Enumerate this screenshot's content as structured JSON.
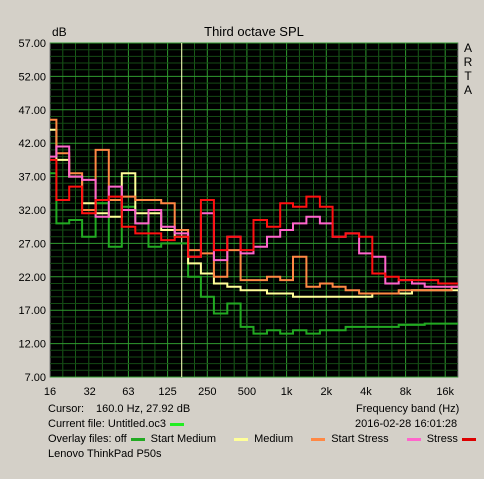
{
  "chart_data": {
    "type": "line",
    "title": "Third octave SPL",
    "ylabel": "dB",
    "xlabel": "Frequency band (Hz)",
    "x_scale": "log",
    "xlim": [
      16,
      20000
    ],
    "ylim": [
      7,
      57
    ],
    "y_ticks": [
      "57.00",
      "52.00",
      "47.00",
      "42.00",
      "37.00",
      "32.00",
      "27.00",
      "22.00",
      "17.00",
      "12.00",
      "7.00"
    ],
    "x_tick_values": [
      16,
      32,
      63,
      125,
      250,
      500,
      1000,
      2000,
      4000,
      8000,
      16000
    ],
    "x_tick_labels": [
      "16",
      "32",
      "63",
      "125",
      "250",
      "500",
      "1k",
      "2k",
      "4k",
      "8k",
      "16k"
    ],
    "x_bands": [
      16,
      20,
      25,
      31.5,
      40,
      50,
      63,
      80,
      100,
      125,
      160,
      200,
      250,
      315,
      400,
      500,
      630,
      800,
      1000,
      1250,
      1600,
      2000,
      2500,
      3150,
      4000,
      5000,
      6300,
      8000,
      10000,
      12500,
      16000,
      20000
    ],
    "cursor_x": 160,
    "grid": true,
    "series": [
      {
        "name": "Start Medium",
        "color": "#22aa22",
        "values": [
          37.5,
          30.0,
          30.5,
          28.0,
          33.0,
          26.5,
          32.5,
          30.0,
          26.5,
          27.0,
          27.0,
          22.0,
          19.0,
          16.5,
          18.0,
          14.5,
          13.5,
          14.0,
          13.5,
          14.0,
          13.5,
          14.0,
          14.0,
          14.5,
          14.5,
          14.5,
          14.5,
          14.8,
          14.8,
          15.0,
          15.0,
          15.0
        ]
      },
      {
        "name": "Medium",
        "color": "#ffff99",
        "values": [
          44.0,
          39.5,
          37.0,
          33.0,
          31.5,
          31.0,
          37.5,
          31.5,
          31.5,
          29.0,
          28.0,
          24.0,
          22.5,
          21.0,
          20.5,
          20.0,
          20.0,
          19.5,
          19.5,
          19.0,
          19.0,
          19.0,
          19.0,
          19.0,
          19.0,
          19.5,
          19.5,
          19.5,
          20.0,
          20.0,
          20.0,
          20.0
        ]
      },
      {
        "name": "Start Stress",
        "color": "#ff8844",
        "values": [
          45.5,
          40.5,
          37.5,
          32.0,
          41.0,
          33.5,
          34.0,
          33.5,
          33.5,
          33.0,
          29.0,
          26.0,
          25.5,
          22.0,
          26.0,
          21.5,
          21.5,
          22.0,
          21.5,
          25.0,
          20.5,
          21.0,
          20.5,
          20.0,
          19.5,
          19.5,
          19.5,
          20.0,
          20.0,
          20.0,
          20.0,
          20.5
        ]
      },
      {
        "name": "Stress",
        "color": "#ff66cc",
        "values": [
          40.0,
          41.5,
          37.0,
          36.5,
          31.0,
          35.5,
          32.0,
          30.0,
          32.0,
          29.5,
          28.5,
          25.0,
          31.5,
          24.5,
          28.0,
          25.5,
          26.5,
          28.0,
          29.0,
          30.0,
          31.0,
          30.0,
          28.0,
          28.5,
          25.5,
          25.0,
          21.0,
          21.5,
          21.0,
          20.5,
          20.5,
          20.5
        ]
      },
      {
        "name": "Lenovo ThinkPad P50s",
        "color": "#ff1111",
        "values": [
          39.5,
          33.5,
          35.5,
          31.5,
          33.5,
          34.0,
          29.5,
          28.5,
          28.5,
          27.5,
          28.0,
          25.0,
          33.5,
          26.0,
          28.0,
          26.0,
          30.5,
          29.5,
          33.0,
          32.5,
          34.0,
          32.5,
          28.0,
          28.5,
          28.0,
          22.5,
          22.0,
          21.5,
          21.5,
          21.5,
          21.0,
          21.0
        ]
      }
    ]
  },
  "ui": {
    "arta_letters": [
      "A",
      "R",
      "T",
      "A"
    ],
    "cursor_label": "Cursor:",
    "cursor_value": "160.0 Hz, 27.92 dB",
    "current_file_label": "Current file: Untitled.oc3",
    "current_file_color": "#22ee22",
    "timestamp": "2016-02-28  16:01:28",
    "overlay_label": "Overlay files: off",
    "legend": [
      {
        "name": "Start Medium",
        "color": "#22aa22"
      },
      {
        "name": "Medium",
        "color": "#ffff99"
      },
      {
        "name": "Start Stress",
        "color": "#ff8844"
      },
      {
        "name": "Stress",
        "color": "#ff66cc"
      }
    ],
    "last_file_label": "Lenovo ThinkPad P50s",
    "last_file_color": "#dd0000"
  }
}
